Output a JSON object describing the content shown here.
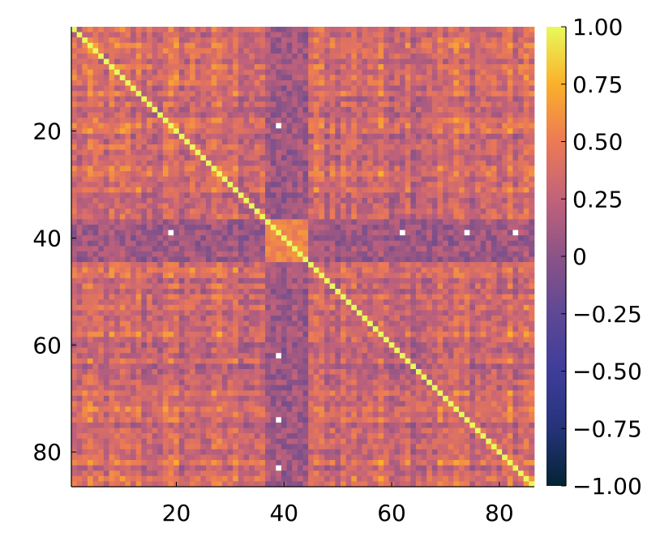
{
  "chart_data": {
    "type": "heatmap",
    "title": "",
    "xlabel": "",
    "ylabel": "",
    "matrix_size": 86,
    "x_ticks": [
      {
        "value": 20,
        "label": "20"
      },
      {
        "value": 40,
        "label": "40"
      },
      {
        "value": 60,
        "label": "60"
      },
      {
        "value": 80,
        "label": "80"
      }
    ],
    "y_ticks": [
      {
        "value": 20,
        "label": "20"
      },
      {
        "value": 40,
        "label": "40"
      },
      {
        "value": 60,
        "label": "60"
      },
      {
        "value": 80,
        "label": "80"
      }
    ],
    "y_axis_direction": "top-to-bottom",
    "colorbar": {
      "range": [
        -1.0,
        1.0
      ],
      "ticks": [
        {
          "value": 1.0,
          "label": "1.00"
        },
        {
          "value": 0.75,
          "label": "0.75"
        },
        {
          "value": 0.5,
          "label": "0.50"
        },
        {
          "value": 0.25,
          "label": "0.25"
        },
        {
          "value": 0.0,
          "label": "0"
        },
        {
          "value": -0.25,
          "label": "−0.25"
        },
        {
          "value": -0.5,
          "label": "−0.50"
        },
        {
          "value": -0.75,
          "label": "−0.75"
        },
        {
          "value": -1.0,
          "label": "−1.00"
        }
      ],
      "colormap": "thermal",
      "colormap_stops": [
        {
          "value": -1.0,
          "color": "#042333"
        },
        {
          "value": -0.75,
          "color": "#25337a"
        },
        {
          "value": -0.5,
          "color": "#3e3d9a"
        },
        {
          "value": -0.25,
          "color": "#5e4896"
        },
        {
          "value": 0.0,
          "color": "#8b5387"
        },
        {
          "value": 0.25,
          "color": "#c2627a"
        },
        {
          "value": 0.5,
          "color": "#ec7a55"
        },
        {
          "value": 0.75,
          "color": "#fbb02a"
        },
        {
          "value": 1.0,
          "color": "#e8fa5b"
        }
      ]
    },
    "diagonal_value": 1.0,
    "block_structure_note": "positive-correlation blocks among variables 1-37 and 60-86; variables ~37-44 weakly correlated with the rest",
    "missing_cells": [
      {
        "row": 19,
        "col": 39
      },
      {
        "row": 39,
        "col": 19
      },
      {
        "row": 39,
        "col": 62
      },
      {
        "row": 39,
        "col": 74
      },
      {
        "row": 39,
        "col": 83
      },
      {
        "row": 62,
        "col": 39
      },
      {
        "row": 74,
        "col": 39
      },
      {
        "row": 83,
        "col": 39
      }
    ],
    "grid": false,
    "legend": "none"
  }
}
